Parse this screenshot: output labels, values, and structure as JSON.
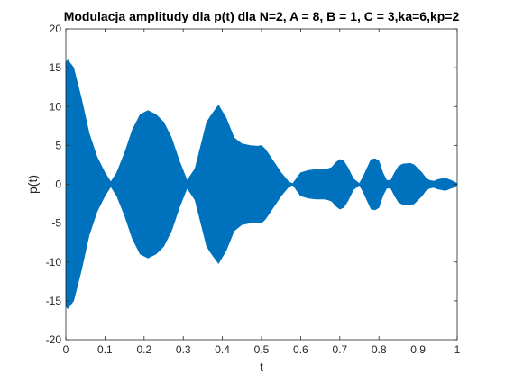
{
  "chart_data": {
    "type": "area",
    "title": "Modulacja amplitudy dla p(t) dla N=2, A = 8, B = 1, C = 3,ka=6,kp=2",
    "xlabel": "t",
    "ylabel": "p(t)",
    "xlim": [
      0,
      1
    ],
    "ylim": [
      -20,
      20
    ],
    "xticks": [
      0,
      0.1,
      0.2,
      0.3,
      0.4,
      0.5,
      0.6,
      0.7,
      0.8,
      0.9,
      1
    ],
    "xtick_labels": [
      "0",
      "0.1",
      "0.2",
      "0.3",
      "0.4",
      "0.5",
      "0.6",
      "0.7",
      "0.8",
      "0.9",
      "1"
    ],
    "yticks": [
      -20,
      -15,
      -10,
      -5,
      0,
      5,
      10,
      15,
      20
    ],
    "ytick_labels": [
      "-20",
      "-15",
      "-10",
      "-5",
      "0",
      "5",
      "10",
      "15",
      "20"
    ],
    "grid": false,
    "series": [
      {
        "color": "#0072BD",
        "fill": "symmetric envelope",
        "envelope": {
          "x": [
            0,
            0.005,
            0.02,
            0.04,
            0.06,
            0.08,
            0.1,
            0.115,
            0.13,
            0.15,
            0.17,
            0.19,
            0.21,
            0.23,
            0.25,
            0.27,
            0.29,
            0.31,
            0.33,
            0.35,
            0.36,
            0.37,
            0.39,
            0.41,
            0.43,
            0.45,
            0.47,
            0.49,
            0.5,
            0.51,
            0.53,
            0.55,
            0.57,
            0.58,
            0.59,
            0.6,
            0.62,
            0.64,
            0.66,
            0.67,
            0.68,
            0.69,
            0.7,
            0.71,
            0.72,
            0.735,
            0.75,
            0.76,
            0.78,
            0.79,
            0.8,
            0.81,
            0.82,
            0.83,
            0.84,
            0.85,
            0.86,
            0.88,
            0.89,
            0.9,
            0.91,
            0.92,
            0.93,
            0.94,
            0.95,
            0.97,
            0.99,
            1
          ],
          "y": [
            15.7,
            16,
            15,
            11,
            6.5,
            3.5,
            1.5,
            0.3,
            1.5,
            4,
            7,
            9,
            9.5,
            9,
            8,
            6,
            3,
            0.5,
            2,
            6,
            8,
            8.8,
            10.2,
            8.5,
            6,
            5.2,
            5,
            4.9,
            5,
            4.5,
            3,
            1.5,
            0.3,
            0.1,
            0.8,
            1.5,
            1.8,
            1.9,
            1.9,
            2,
            2.2,
            2.8,
            3.2,
            3,
            2.2,
            0.7,
            0.1,
            1,
            3.2,
            3.3,
            3,
            1.5,
            0.5,
            0.5,
            1.5,
            2.3,
            2.6,
            2.7,
            2.5,
            2,
            1.5,
            0.8,
            0.5,
            0.4,
            0.6,
            0.8,
            0.4,
            0.1
          ]
        }
      }
    ]
  }
}
